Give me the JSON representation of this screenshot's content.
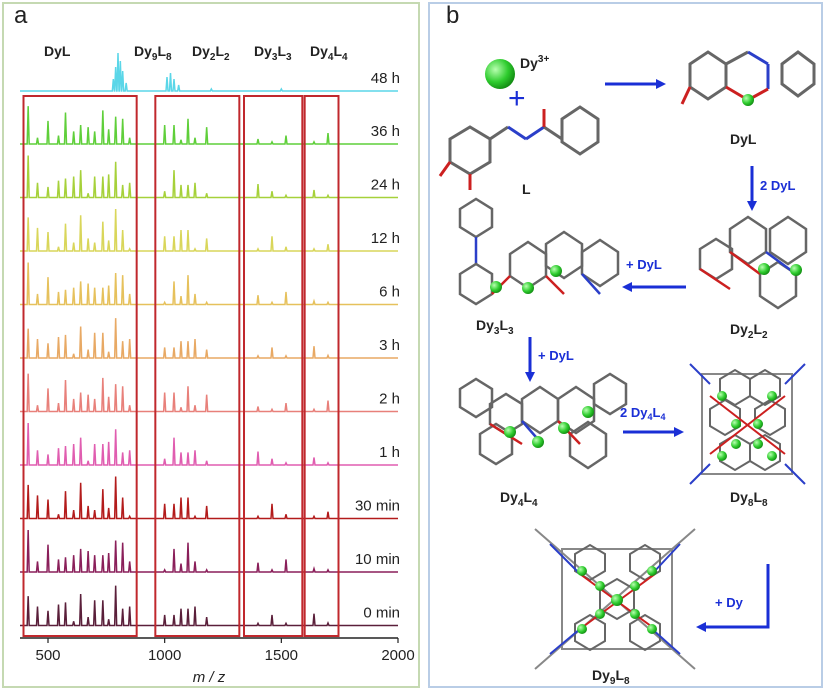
{
  "panel_a": {
    "label": "a",
    "header_labels": [
      "DyL",
      "Dy9L8",
      "Dy2L2",
      "Dy3L3",
      "Dy4L4"
    ],
    "x_axis": {
      "label": "m / z",
      "ticks": [
        "500",
        "1000",
        "1500",
        "2000"
      ],
      "tick_values": [
        500,
        1000,
        1500,
        2000
      ],
      "range": [
        380,
        2000
      ]
    },
    "traces": [
      {
        "time": "48 h",
        "color": "#5ad6e8"
      },
      {
        "time": "36 h",
        "color": "#5fcf3a"
      },
      {
        "time": "24 h",
        "color": "#a6d13a"
      },
      {
        "time": "12 h",
        "color": "#d9d65a"
      },
      {
        "time": "6 h",
        "color": "#e6c15c"
      },
      {
        "time": "3 h",
        "color": "#e8a964"
      },
      {
        "time": "2 h",
        "color": "#e8807a"
      },
      {
        "time": "1 h",
        "color": "#e05db0"
      },
      {
        "time": "30 min",
        "color": "#b31b1b"
      },
      {
        "time": "10 min",
        "color": "#8a1f5a"
      },
      {
        "time": "0 min",
        "color": "#5a1f3a"
      }
    ],
    "region_boxes_mz": [
      [
        395,
        880
      ],
      [
        960,
        1320
      ],
      [
        1340,
        1590
      ],
      [
        1600,
        1745
      ]
    ],
    "box_color": "#c0282d"
  },
  "panel_b": {
    "label": "b",
    "ion_label": "Dy3+",
    "plus": "+",
    "molecules": {
      "ligand": "L",
      "dyl": "DyL",
      "dy2l2": "Dy2L2",
      "dy3l3": "Dy3L3",
      "dy4l4": "Dy4L4",
      "dy8l8": "Dy8L8",
      "dy9l8": "Dy9L8"
    },
    "arrows": {
      "to_dy2l2": "2 DyL",
      "to_dy3l3": "+ DyL",
      "to_dy4l4": "+ DyL",
      "to_dy8l8": "2 Dy4L4",
      "to_dy9l8": "+ Dy"
    },
    "arrow_color": "#1a2fd6",
    "dy_color": "#2ecc2e"
  }
}
